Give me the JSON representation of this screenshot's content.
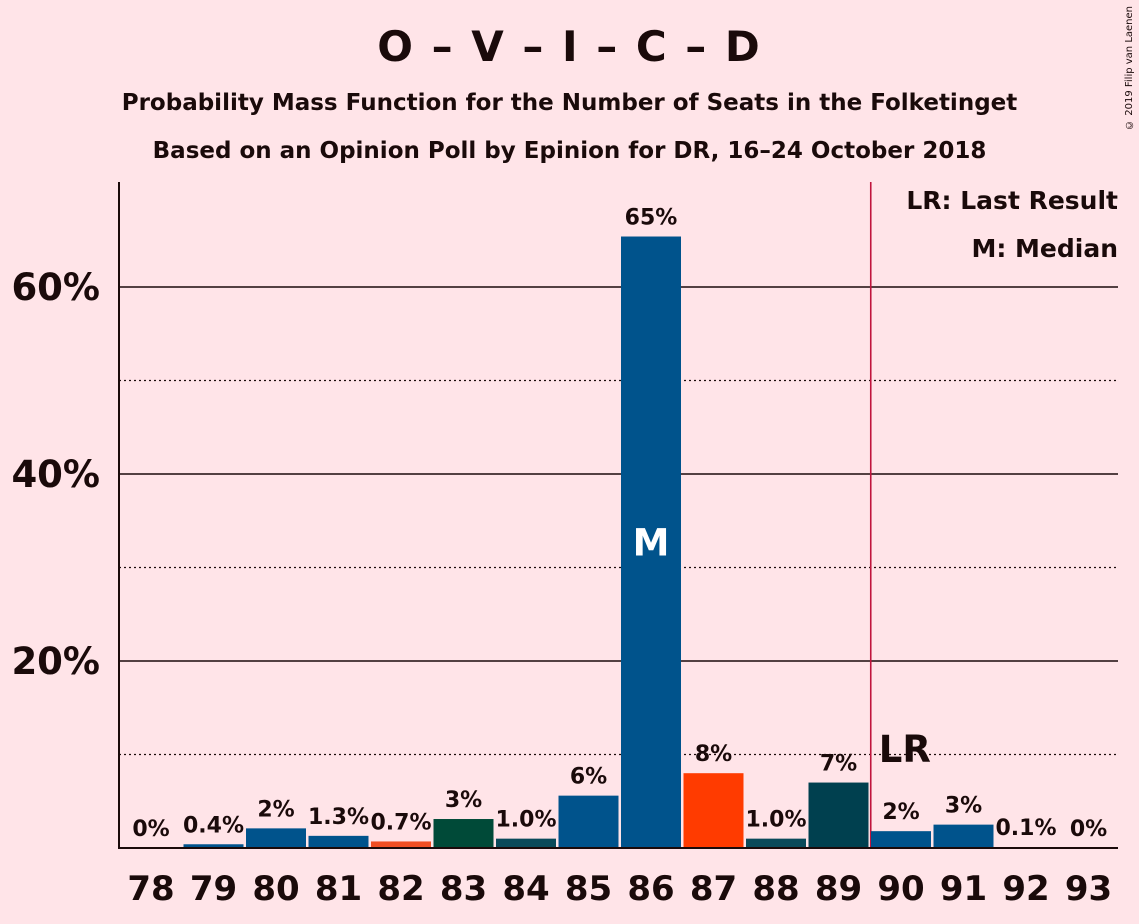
{
  "title": "O – V – I – C – D",
  "subtitle1": "Probability Mass Function for the Number of Seats in the Folketinget",
  "subtitle2": "Based on an Opinion Poll by Epinion for DR, 16–24 October 2018",
  "copyright": "© 2019 Filip van Laenen",
  "legend": {
    "lr": "LR: Last Result",
    "m": "M: Median"
  },
  "colors": {
    "background": "#FFE4E8",
    "lr_line": "#C0143C"
  },
  "chart_data": {
    "type": "bar",
    "categories": [
      "78",
      "79",
      "80",
      "81",
      "82",
      "83",
      "84",
      "85",
      "86",
      "87",
      "88",
      "89",
      "90",
      "91",
      "92",
      "93"
    ],
    "values": [
      0,
      0.4,
      2.1,
      1.3,
      0.7,
      3.1,
      1.0,
      5.6,
      65.4,
      8.0,
      1.0,
      7.0,
      1.8,
      2.5,
      0.1,
      0
    ],
    "labels": [
      "0%",
      "0.4%",
      "2%",
      "1.3%",
      "0.7%",
      "3%",
      "1.0%",
      "6%",
      "65%",
      "8%",
      "1.0%",
      "7%",
      "2%",
      "3%",
      "0.1%",
      "0%"
    ],
    "bar_colors": [
      "#00538C",
      "#00538C",
      "#00538C",
      "#00538C",
      "#F04E23",
      "#004A38",
      "#0A4A5A",
      "#00538C",
      "#00538C",
      "#FF3B00",
      "#0A4A5A",
      "#00404F",
      "#00538C",
      "#00538C",
      "#00538C",
      "#00538C"
    ],
    "yticks": [
      "20%",
      "40%",
      "60%"
    ],
    "ytick_values": [
      20,
      40,
      60
    ],
    "minor_gridlines": [
      10,
      30,
      50
    ],
    "ylim": [
      0,
      70
    ],
    "median_category": "86",
    "median_marker": "M",
    "last_result_category": "90",
    "last_result_marker": "LR",
    "grid": true,
    "legend_position": "top-right"
  }
}
